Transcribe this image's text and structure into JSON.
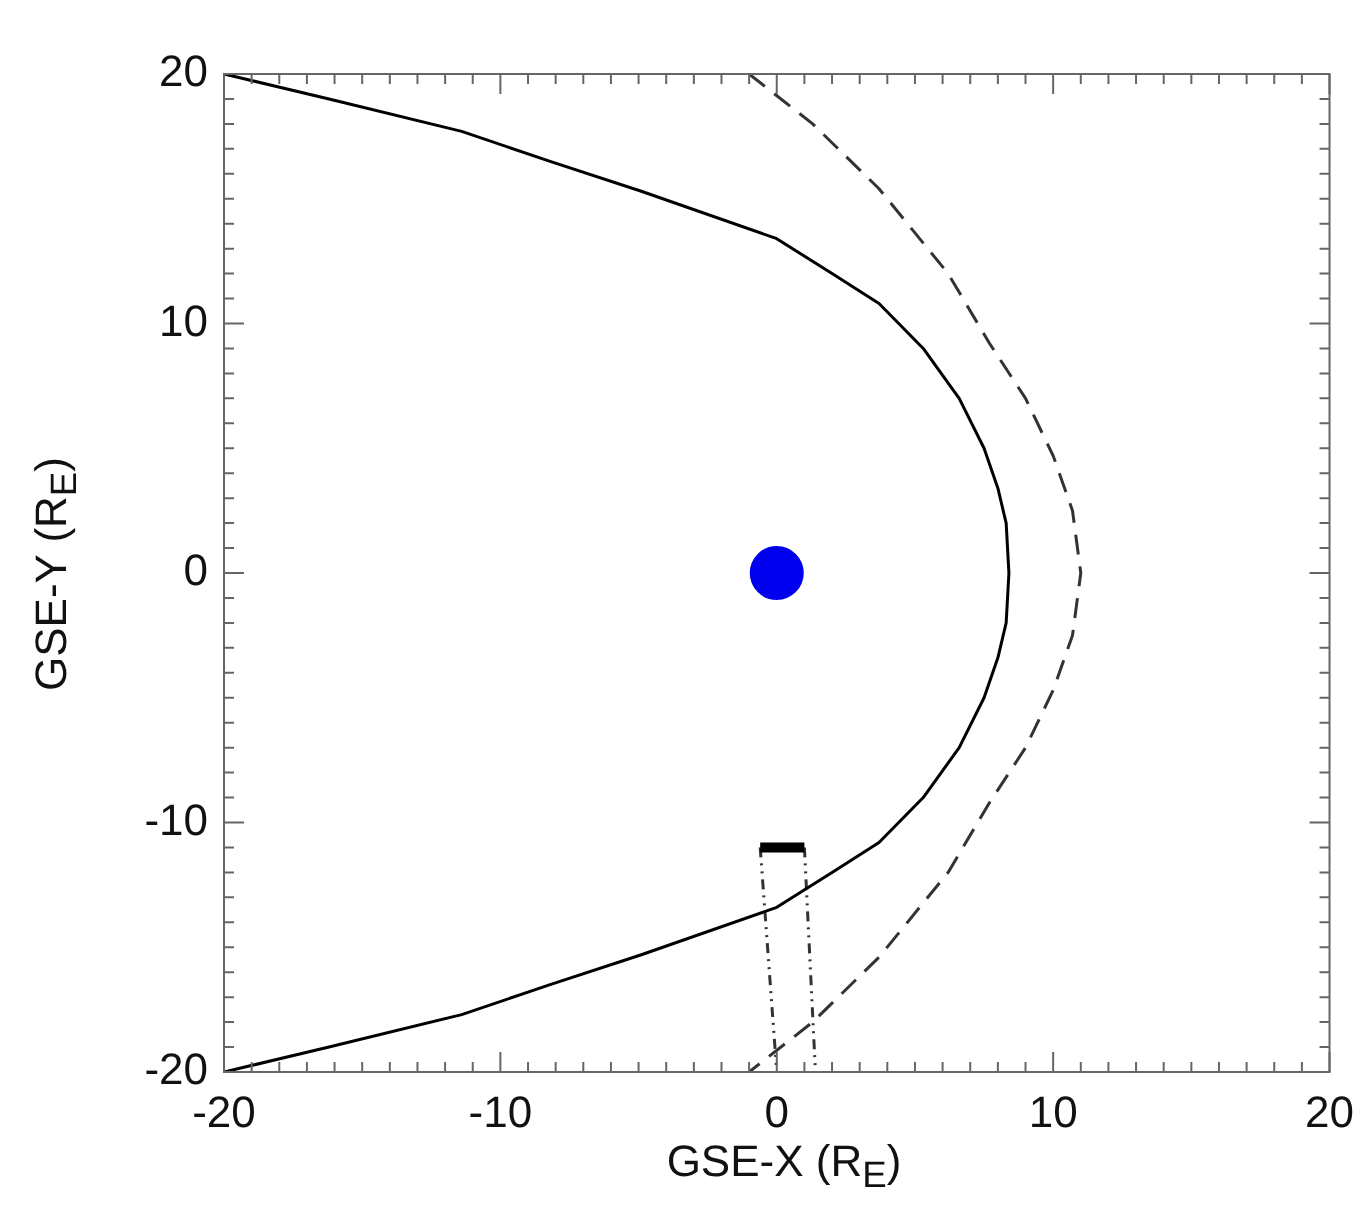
{
  "chart_data": {
    "type": "line",
    "xlabel": "GSE-X (R$_{E}$)",
    "ylabel": "GSE-Y (R$_{E}$)",
    "xlim": [
      -20,
      20
    ],
    "ylim": [
      -20,
      20
    ],
    "xticks": [
      -20,
      -10,
      0,
      10,
      20
    ],
    "yticks": [
      -20,
      -10,
      0,
      10,
      20
    ],
    "grid": false,
    "legend": false,
    "series": [
      {
        "color": "#000000",
        "line_style": "solid",
        "x": [
          -20,
          -16.2,
          -11.4,
          -8.2,
          -4.9,
          0,
          2.0,
          3.7,
          5.3,
          6.6,
          7.5,
          8.0,
          8.3,
          8.4,
          8.3,
          8.0,
          7.5,
          6.6,
          5.3,
          3.7,
          2.0,
          0,
          -4.9,
          -8.2,
          -11.4,
          -16.2,
          -20
        ],
        "values": [
          20,
          19,
          17.7,
          16.5,
          15.3,
          13.4,
          12,
          10.8,
          9,
          7.0,
          5,
          3.4,
          2,
          0,
          -2,
          -3.4,
          -5,
          -7.0,
          -9,
          -10.8,
          -12,
          -13.4,
          -15.3,
          -16.5,
          -17.7,
          -19,
          -20
        ]
      },
      {
        "color": "#333333",
        "line_style": "dashed",
        "x": [
          -1.0,
          1.3,
          3.7,
          6.2,
          7.7,
          9.0,
          10.0,
          10.7,
          11.0,
          10.7,
          10.0,
          9.0,
          7.7,
          6.2,
          3.7,
          1.3,
          -1.0
        ],
        "values": [
          20,
          18,
          15.4,
          12,
          9.2,
          7,
          4.7,
          2.5,
          0,
          -2.5,
          -4.7,
          -7,
          -9.2,
          -12,
          -15.4,
          -18,
          -20
        ]
      },
      {
        "type": "scatter",
        "color": "#0000ee",
        "marker": "circle",
        "x": [
          0
        ],
        "values": [
          0
        ]
      },
      {
        "type": "line",
        "color": "#000000",
        "line_style": "solid",
        "x": [
          -0.6,
          1.0
        ],
        "values": [
          -11,
          -11
        ]
      },
      {
        "type": "line",
        "color": "#333333",
        "line_style": "dotted",
        "x": [
          -0.6,
          0
        ],
        "values": [
          -11,
          -20
        ]
      },
      {
        "type": "line",
        "color": "#333333",
        "line_style": "dotted",
        "x": [
          1.0,
          1.4
        ],
        "values": [
          -11,
          -20
        ]
      }
    ]
  }
}
